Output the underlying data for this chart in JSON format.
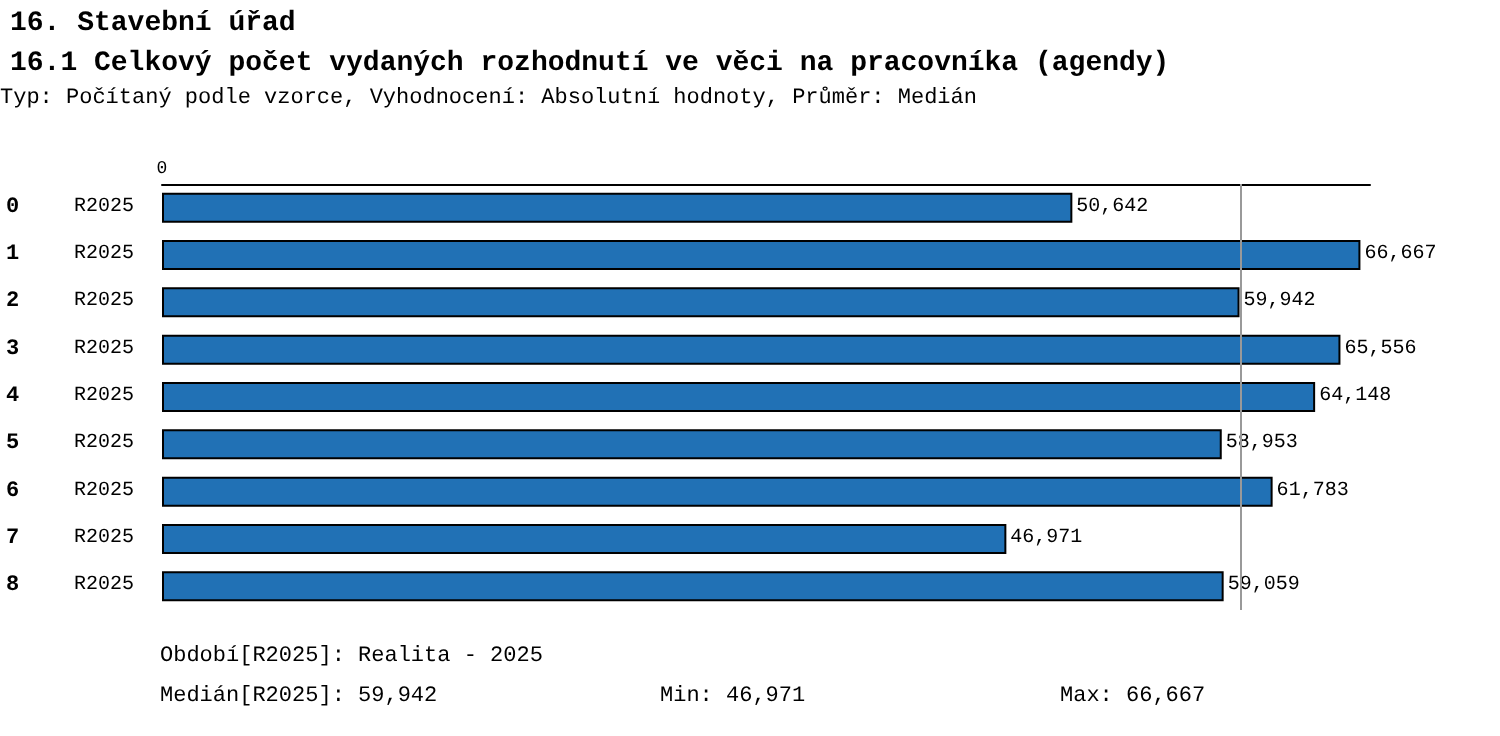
{
  "chart_data": {
    "type": "bar",
    "orientation": "horizontal",
    "title": "16. Stavební úřad",
    "subtitle": "16.1 Celkový počet vydaných rozhodnutí ve věci na pracovníka (agendy)",
    "annotations": [
      "Typ: Počítaný podle vzorce, Vyhodnocení: Absolutní hodnoty, Průměr: Medián",
      "Období[R2025]: Realita - 2025",
      "Medián[R2025]: 59,942",
      "Min: 46,971",
      "Max: 66,667",
      "0"
    ],
    "categories": [
      "0 R2025",
      "1 R2025",
      "2 R2025",
      "3 R2025",
      "4 R2025",
      "5 R2025",
      "6 R2025",
      "7 R2025",
      "8 R2025"
    ],
    "values": [
      50642,
      66667,
      59942,
      65556,
      64148,
      58953,
      61783,
      46971,
      59059
    ],
    "value_labels": [
      "50,642",
      "66,667",
      "59,942",
      "65,556",
      "64,148",
      "58,953",
      "61,783",
      "46,971",
      "59,059"
    ],
    "color": "#2171b5",
    "xlim": [
      0,
      67200
    ],
    "grid": false,
    "ref_lines": [
      {
        "axis": "x",
        "value": 59942,
        "color": "#999999"
      }
    ]
  }
}
